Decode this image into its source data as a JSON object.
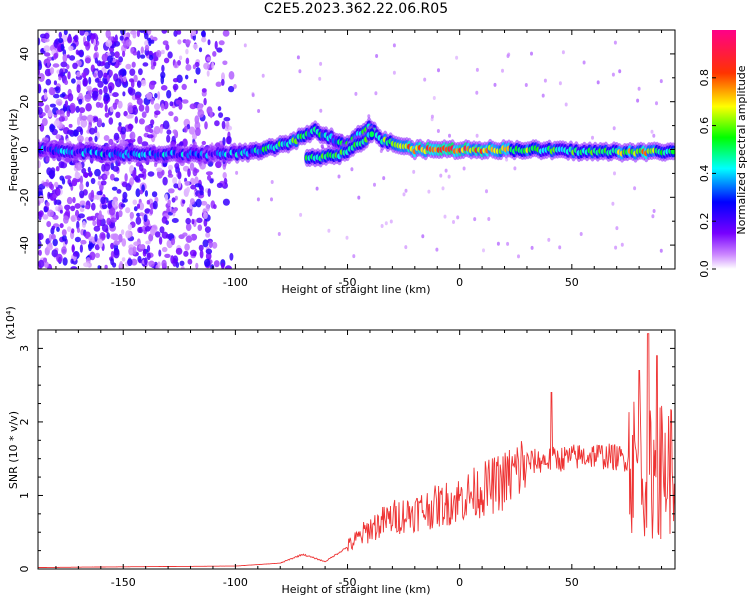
{
  "title": "C2E5.2023.362.22.06.R05",
  "chart_data": [
    {
      "type": "heatmap",
      "xlabel": "Height of straight line (km)",
      "ylabel": "Frequency (Hz)",
      "xlim": [
        -188,
        96
      ],
      "ylim": [
        -50,
        50
      ],
      "x_ticks": [
        -150,
        -100,
        -50,
        0,
        50
      ],
      "y_ticks": [
        -40,
        -20,
        0,
        20,
        40
      ],
      "colorbar": {
        "label": "Normalized spectral amplitude",
        "range": [
          0,
          1
        ],
        "ticks": [
          "0.0",
          "0.2",
          "0.4",
          "0.6",
          "0.8"
        ]
      },
      "colormap": [
        "#ffffff",
        "#9900ff",
        "#0000ff",
        "#00ffff",
        "#00ff00",
        "#ffff00",
        "#ff0000",
        "#ff0099"
      ],
      "ridge": [
        {
          "x": -188,
          "f": 0,
          "a": 0.3
        },
        {
          "x": -150,
          "f": -2,
          "a": 0.35
        },
        {
          "x": -110,
          "f": -2,
          "a": 0.3
        },
        {
          "x": -90,
          "f": -1,
          "a": 0.4
        },
        {
          "x": -75,
          "f": 3,
          "a": 0.5
        },
        {
          "x": -65,
          "f": 8,
          "a": 0.4
        },
        {
          "x": -50,
          "f": 2,
          "a": 0.45
        },
        {
          "x": -40,
          "f": 10,
          "a": 0.5
        },
        {
          "x": -35,
          "f": 4,
          "a": 0.55
        },
        {
          "x": -20,
          "f": 0,
          "a": 0.75
        },
        {
          "x": 0,
          "f": 0,
          "a": 0.8
        },
        {
          "x": 30,
          "f": 0,
          "a": 0.55
        },
        {
          "x": 60,
          "f": -1,
          "a": 0.5
        },
        {
          "x": 80,
          "f": -1,
          "a": 0.7
        },
        {
          "x": 96,
          "f": -1,
          "a": 0.5
        }
      ],
      "lower_branch": [
        {
          "x": -68,
          "f": -3
        },
        {
          "x": -55,
          "f": -3
        },
        {
          "x": -45,
          "f": 2
        },
        {
          "x": -38,
          "f": 8
        }
      ]
    },
    {
      "type": "line",
      "xlabel": "Height of straight line (km)",
      "ylabel": "SNR (10 * v/v)",
      "yscale_label": "(x10⁴)",
      "xlim": [
        -188,
        96
      ],
      "ylim": [
        0,
        3.25
      ],
      "x_ticks": [
        -150,
        -100,
        -50,
        0,
        50
      ],
      "y_ticks": [
        0,
        1,
        2,
        3
      ],
      "color": "#ee3333",
      "envelope": [
        {
          "x": -188,
          "y": 0.02
        },
        {
          "x": -150,
          "y": 0.03
        },
        {
          "x": -100,
          "y": 0.04
        },
        {
          "x": -80,
          "y": 0.08
        },
        {
          "x": -70,
          "y": 0.2
        },
        {
          "x": -60,
          "y": 0.1
        },
        {
          "x": -50,
          "y": 0.3
        },
        {
          "x": -40,
          "y": 0.55
        },
        {
          "x": -30,
          "y": 0.7
        },
        {
          "x": -10,
          "y": 0.85
        },
        {
          "x": 0,
          "y": 0.95
        },
        {
          "x": 20,
          "y": 1.2
        },
        {
          "x": 30,
          "y": 1.45
        },
        {
          "x": 45,
          "y": 1.5
        },
        {
          "x": 60,
          "y": 1.55
        },
        {
          "x": 75,
          "y": 1.5
        },
        {
          "x": 85,
          "y": 1.3
        },
        {
          "x": 96,
          "y": 1.4
        }
      ],
      "spikes": [
        {
          "x": 41,
          "y": 2.4
        },
        {
          "x": 80,
          "y": 2.7
        },
        {
          "x": 84,
          "y": 3.2
        },
        {
          "x": 88,
          "y": 2.9
        }
      ]
    }
  ]
}
